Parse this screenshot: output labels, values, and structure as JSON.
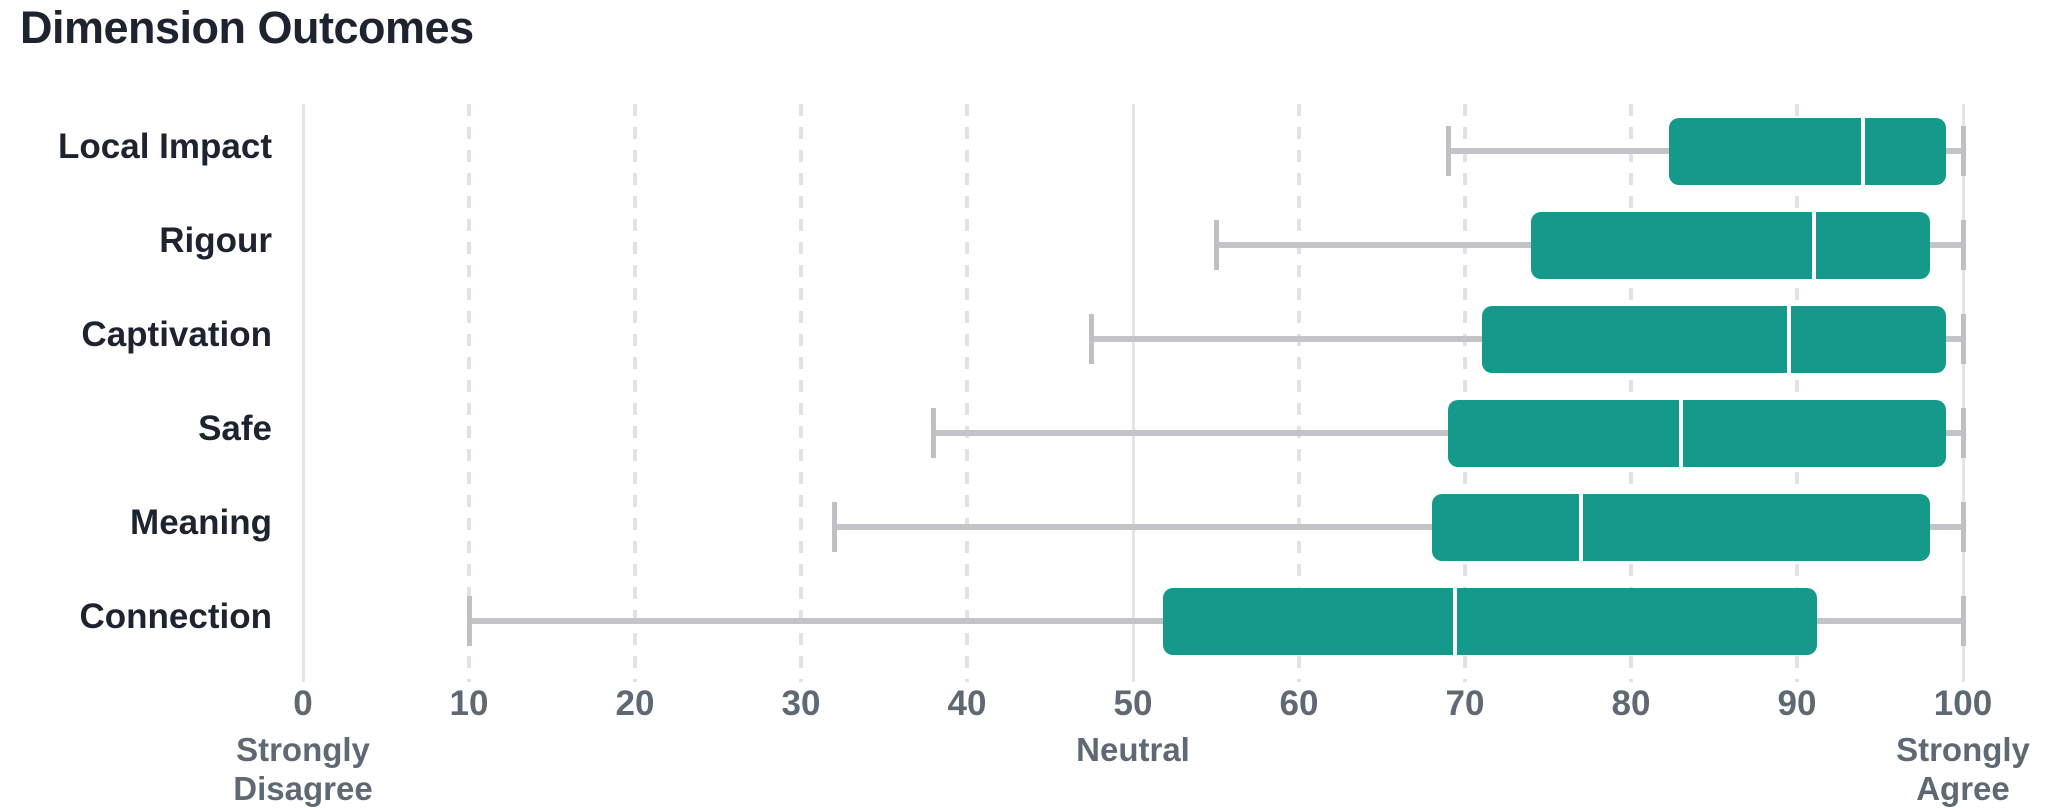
{
  "title": "Dimension Outcomes",
  "colors": {
    "background": "#FFFFFF",
    "box_fill": "#15998A",
    "median_line": "#FFFFFF",
    "whisker": "#C3C4C8",
    "whisker_cap": "#BFC0C4",
    "grid_solid": "#E4E5E9",
    "grid_dashed": "#DFE2E6",
    "title_text": "#1D2430",
    "category_text": "#1D2430",
    "axis_text": "#5F6973"
  },
  "chart_data": {
    "type": "boxplot",
    "orientation": "horizontal",
    "title": "Dimension Outcomes",
    "categories": [
      "Local Impact",
      "Rigour",
      "Captivation",
      "Safe",
      "Meaning",
      "Connection"
    ],
    "series": [
      {
        "name": "Local Impact",
        "whisker_low": 69,
        "q1": 82.3,
        "median": 94,
        "q3": 99,
        "whisker_high": 100
      },
      {
        "name": "Rigour",
        "whisker_low": 55,
        "q1": 74,
        "median": 91,
        "q3": 98,
        "whisker_high": 100
      },
      {
        "name": "Captivation",
        "whisker_low": 47.5,
        "q1": 71,
        "median": 89.5,
        "q3": 99,
        "whisker_high": 100
      },
      {
        "name": "Safe",
        "whisker_low": 38,
        "q1": 69,
        "median": 83,
        "q3": 99,
        "whisker_high": 100
      },
      {
        "name": "Meaning",
        "whisker_low": 32,
        "q1": 68,
        "median": 77,
        "q3": 98,
        "whisker_high": 100
      },
      {
        "name": "Connection",
        "whisker_low": 10,
        "q1": 51.8,
        "median": 69.4,
        "q3": 91.2,
        "whisker_high": 100
      }
    ],
    "xlim": [
      0,
      100
    ],
    "x_ticks": [
      0,
      10,
      20,
      30,
      40,
      50,
      60,
      70,
      80,
      90,
      100
    ],
    "x_tick_sublabels": [
      {
        "value": 0,
        "lines": [
          "Strongly",
          "Disagree"
        ]
      },
      {
        "value": 50,
        "lines": [
          "Neutral"
        ]
      },
      {
        "value": 100,
        "lines": [
          "Strongly",
          "Agree"
        ]
      }
    ],
    "grid": {
      "solid_at": [
        0,
        50,
        100
      ],
      "dashed_at": [
        10,
        20,
        30,
        40,
        60,
        70,
        80,
        90
      ]
    },
    "legend": "none"
  }
}
